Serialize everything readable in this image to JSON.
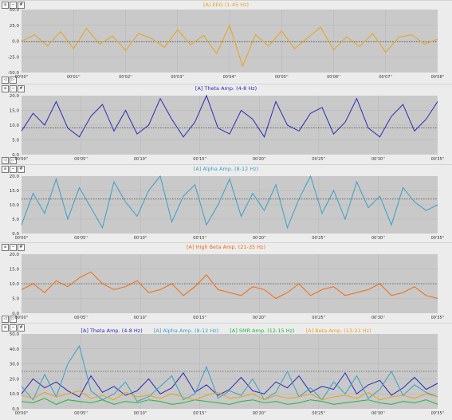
{
  "panels": [
    {
      "title": "[A] EEG (1-45 Hz)",
      "color": "#e8a317",
      "yticks": [
        "50.0",
        "25.0",
        "0.0",
        "-25.0",
        "-50.0"
      ],
      "xticks": [
        "00'00''",
        "00'01''",
        "00'02''",
        "00'03''",
        "00'04''",
        "00'05''",
        "00'06''",
        "00'07''",
        "00'08''"
      ]
    },
    {
      "title": "[A] Theta Amp. (4-8 Hz)",
      "color": "#2a2ab5",
      "yticks": [
        "20.0",
        "15.0",
        "10.0",
        "5.0",
        "0.0"
      ],
      "xticks": [
        "00'00''",
        "00'05''",
        "00'10''",
        "00'15''",
        "00'20''",
        "00'25''",
        "00'30''",
        "00'35''"
      ]
    },
    {
      "title": "[A] Alpha Amp. (8-12 Hz)",
      "color": "#3aa0c6",
      "yticks": [
        "20.0",
        "15.0",
        "10.0",
        "5.0",
        "0.0"
      ],
      "xticks": [
        "00'00''",
        "00'05''",
        "00'10''",
        "00'15''",
        "00'20''",
        "00'25''",
        "00'30''",
        "00'35''"
      ]
    },
    {
      "title": "[A] High Beta Amp. (21-35 Hz)",
      "color": "#f26a0c",
      "yticks": [
        "20.0",
        "15.0",
        "10.0",
        "5.0",
        "0.0"
      ],
      "xticks": [
        "00'00''",
        "00'05''",
        "00'10''",
        "00'15''",
        "00'20''",
        "00'25''",
        "00'30''",
        "00'35''"
      ]
    },
    {
      "legend": [
        {
          "name": "[A] Theta Amp. (4-8 Hz)",
          "color": "#2a2ab5"
        },
        {
          "name": "[A] Alpha Amp. (8-12 Hz)",
          "color": "#3aa0c6"
        },
        {
          "name": "[A] SMR Amp. (12-15 Hz)",
          "color": "#1fb83a"
        },
        {
          "name": "[A] Beta Amp. (13-21 Hz)",
          "color": "#e8a317"
        }
      ],
      "yticks": [
        "50.0",
        "40.0",
        "30.0",
        "20.0",
        "10.0",
        "0.0"
      ],
      "xticks": [
        "00'00''",
        "00'05''",
        "00'10''",
        "00'15''",
        "00'20''",
        "00'25''",
        "00'30''",
        "00'35''"
      ]
    }
  ],
  "controls": {
    "btn1": "a",
    "btn2": "−",
    "btn3": "#",
    "nav_prev": "◁",
    "nav_next": "▷"
  },
  "chart_data": [
    {
      "type": "line",
      "title": "[A] EEG (1-45 Hz)",
      "xlim": [
        0,
        8
      ],
      "ylim": [
        -50,
        50
      ],
      "threshold": -1,
      "series": [
        {
          "name": "[A] EEG (1-45 Hz)",
          "x": [
            0,
            0.25,
            0.5,
            0.75,
            1,
            1.25,
            1.5,
            1.75,
            2,
            2.25,
            2.5,
            2.75,
            3,
            3.25,
            3.5,
            3.75,
            4,
            4.25,
            4.5,
            4.75,
            5,
            5.25,
            5.5,
            5.75,
            6,
            6.25,
            6.5,
            6.75,
            7,
            7.25,
            7.5,
            7.75,
            8
          ],
          "values": [
            0,
            10,
            -8,
            15,
            -12,
            20,
            -5,
            8,
            -15,
            12,
            4,
            -10,
            18,
            -6,
            9,
            -20,
            25,
            -40,
            10,
            -8,
            16,
            -12,
            5,
            22,
            -14,
            7,
            -9,
            12,
            -18,
            6,
            10,
            -5,
            3
          ]
        }
      ]
    },
    {
      "type": "line",
      "title": "[A] Theta Amp. (4-8 Hz)",
      "xlim": [
        0,
        36
      ],
      "ylim": [
        0,
        20
      ],
      "threshold": 9,
      "series": [
        {
          "name": "[A] Theta Amp. (4-8 Hz)",
          "x": [
            0,
            1,
            2,
            3,
            4,
            5,
            6,
            7,
            8,
            9,
            10,
            11,
            12,
            13,
            14,
            15,
            16,
            17,
            18,
            19,
            20,
            21,
            22,
            23,
            24,
            25,
            26,
            27,
            28,
            29,
            30,
            31,
            32,
            33,
            34,
            35,
            36
          ],
          "values": [
            8,
            14,
            10,
            18,
            9,
            6,
            13,
            17,
            8,
            15,
            7,
            10,
            19,
            12,
            6,
            11,
            20,
            9,
            7,
            15,
            12,
            6,
            18,
            10,
            8,
            14,
            16,
            7,
            11,
            19,
            9,
            6,
            13,
            17,
            8,
            12,
            18
          ]
        }
      ]
    },
    {
      "type": "line",
      "title": "[A] Alpha Amp. (8-12 Hz)",
      "xlim": [
        0,
        36
      ],
      "ylim": [
        0,
        20
      ],
      "threshold": 12,
      "series": [
        {
          "name": "[A] Alpha Amp. (8-12 Hz)",
          "x": [
            0,
            1,
            2,
            3,
            4,
            5,
            6,
            7,
            8,
            9,
            10,
            11,
            12,
            13,
            14,
            15,
            16,
            17,
            18,
            19,
            20,
            21,
            22,
            23,
            24,
            25,
            26,
            27,
            28,
            29,
            30,
            31,
            32,
            33,
            34,
            35,
            36
          ],
          "values": [
            3,
            14,
            7,
            19,
            5,
            16,
            9,
            2,
            18,
            11,
            6,
            15,
            20,
            4,
            13,
            17,
            3,
            10,
            19,
            6,
            14,
            8,
            17,
            2,
            12,
            20,
            7,
            15,
            5,
            18,
            9,
            13,
            3,
            16,
            11,
            8,
            10
          ]
        }
      ]
    },
    {
      "type": "line",
      "title": "[A] High Beta Amp. (21-35 Hz)",
      "xlim": [
        0,
        36
      ],
      "ylim": [
        0,
        20
      ],
      "threshold": 10,
      "series": [
        {
          "name": "[A] High Beta Amp. (21-35 Hz)",
          "x": [
            0,
            1,
            2,
            3,
            4,
            5,
            6,
            7,
            8,
            9,
            10,
            11,
            12,
            13,
            14,
            15,
            16,
            17,
            18,
            19,
            20,
            21,
            22,
            23,
            24,
            25,
            26,
            27,
            28,
            29,
            30,
            31,
            32,
            33,
            34,
            35,
            36
          ],
          "values": [
            8,
            10,
            7,
            11,
            9,
            12,
            14,
            10,
            8,
            9,
            11,
            7,
            8,
            10,
            6,
            9,
            13,
            8,
            7,
            6,
            9,
            8,
            5,
            7,
            10,
            6,
            8,
            9,
            6,
            7,
            8,
            10,
            6,
            7,
            9,
            6,
            5
          ]
        }
      ]
    },
    {
      "type": "line",
      "title": "",
      "xlim": [
        0,
        36
      ],
      "ylim": [
        0,
        50
      ],
      "threshold": 25,
      "series": [
        {
          "name": "[A] Theta Amp. (4-8 Hz)",
          "x": [
            0,
            1,
            2,
            3,
            4,
            5,
            6,
            7,
            8,
            9,
            10,
            11,
            12,
            13,
            14,
            15,
            16,
            17,
            18,
            19,
            20,
            21,
            22,
            23,
            24,
            25,
            26,
            27,
            28,
            29,
            30,
            31,
            32,
            33,
            34,
            35,
            36
          ],
          "values": [
            10,
            20,
            14,
            18,
            12,
            8,
            22,
            11,
            15,
            9,
            12,
            20,
            10,
            14,
            24,
            11,
            16,
            9,
            13,
            21,
            12,
            10,
            18,
            14,
            22,
            11,
            15,
            13,
            24,
            10,
            16,
            19,
            9,
            14,
            21,
            13,
            17
          ]
        },
        {
          "name": "[A] Alpha Amp. (8-12 Hz)",
          "x": [
            0,
            1,
            2,
            3,
            4,
            5,
            6,
            7,
            8,
            9,
            10,
            11,
            12,
            13,
            14,
            15,
            16,
            17,
            18,
            19,
            20,
            21,
            22,
            23,
            24,
            25,
            26,
            27,
            28,
            29,
            30,
            31,
            32,
            33,
            34,
            35,
            36
          ],
          "values": [
            15,
            6,
            23,
            8,
            30,
            42,
            12,
            6,
            10,
            18,
            5,
            8,
            15,
            22,
            6,
            10,
            28,
            7,
            12,
            9,
            20,
            6,
            11,
            25,
            8,
            14,
            6,
            18,
            10,
            22,
            7,
            13,
            25,
            9,
            16,
            11,
            8
          ]
        },
        {
          "name": "[A] SMR Amp. (12-15 Hz)",
          "x": [
            0,
            1,
            2,
            3,
            4,
            5,
            6,
            7,
            8,
            9,
            10,
            11,
            12,
            13,
            14,
            15,
            16,
            17,
            18,
            19,
            20,
            21,
            22,
            23,
            24,
            25,
            26,
            27,
            28,
            29,
            30,
            31,
            32,
            33,
            34,
            35,
            36
          ],
          "values": [
            5,
            4,
            7,
            3,
            6,
            5,
            4,
            6,
            3,
            5,
            4,
            6,
            5,
            3,
            4,
            6,
            5,
            4,
            3,
            5,
            6,
            4,
            5,
            3,
            4,
            6,
            5,
            3,
            4,
            5,
            6,
            4,
            3,
            5,
            4,
            6,
            3
          ]
        },
        {
          "name": "[A] Beta Amp. (13-21 Hz)",
          "x": [
            0,
            1,
            2,
            3,
            4,
            5,
            6,
            7,
            8,
            9,
            10,
            11,
            12,
            13,
            14,
            15,
            16,
            17,
            18,
            19,
            20,
            21,
            22,
            23,
            24,
            25,
            26,
            27,
            28,
            29,
            30,
            31,
            32,
            33,
            34,
            35,
            36
          ],
          "values": [
            9,
            7,
            11,
            8,
            10,
            12,
            7,
            9,
            6,
            11,
            8,
            9,
            7,
            10,
            8,
            6,
            9,
            11,
            7,
            8,
            10,
            6,
            9,
            7,
            8,
            10,
            6,
            8,
            9,
            7,
            11,
            6,
            8,
            9,
            7,
            10,
            8
          ]
        }
      ]
    }
  ]
}
